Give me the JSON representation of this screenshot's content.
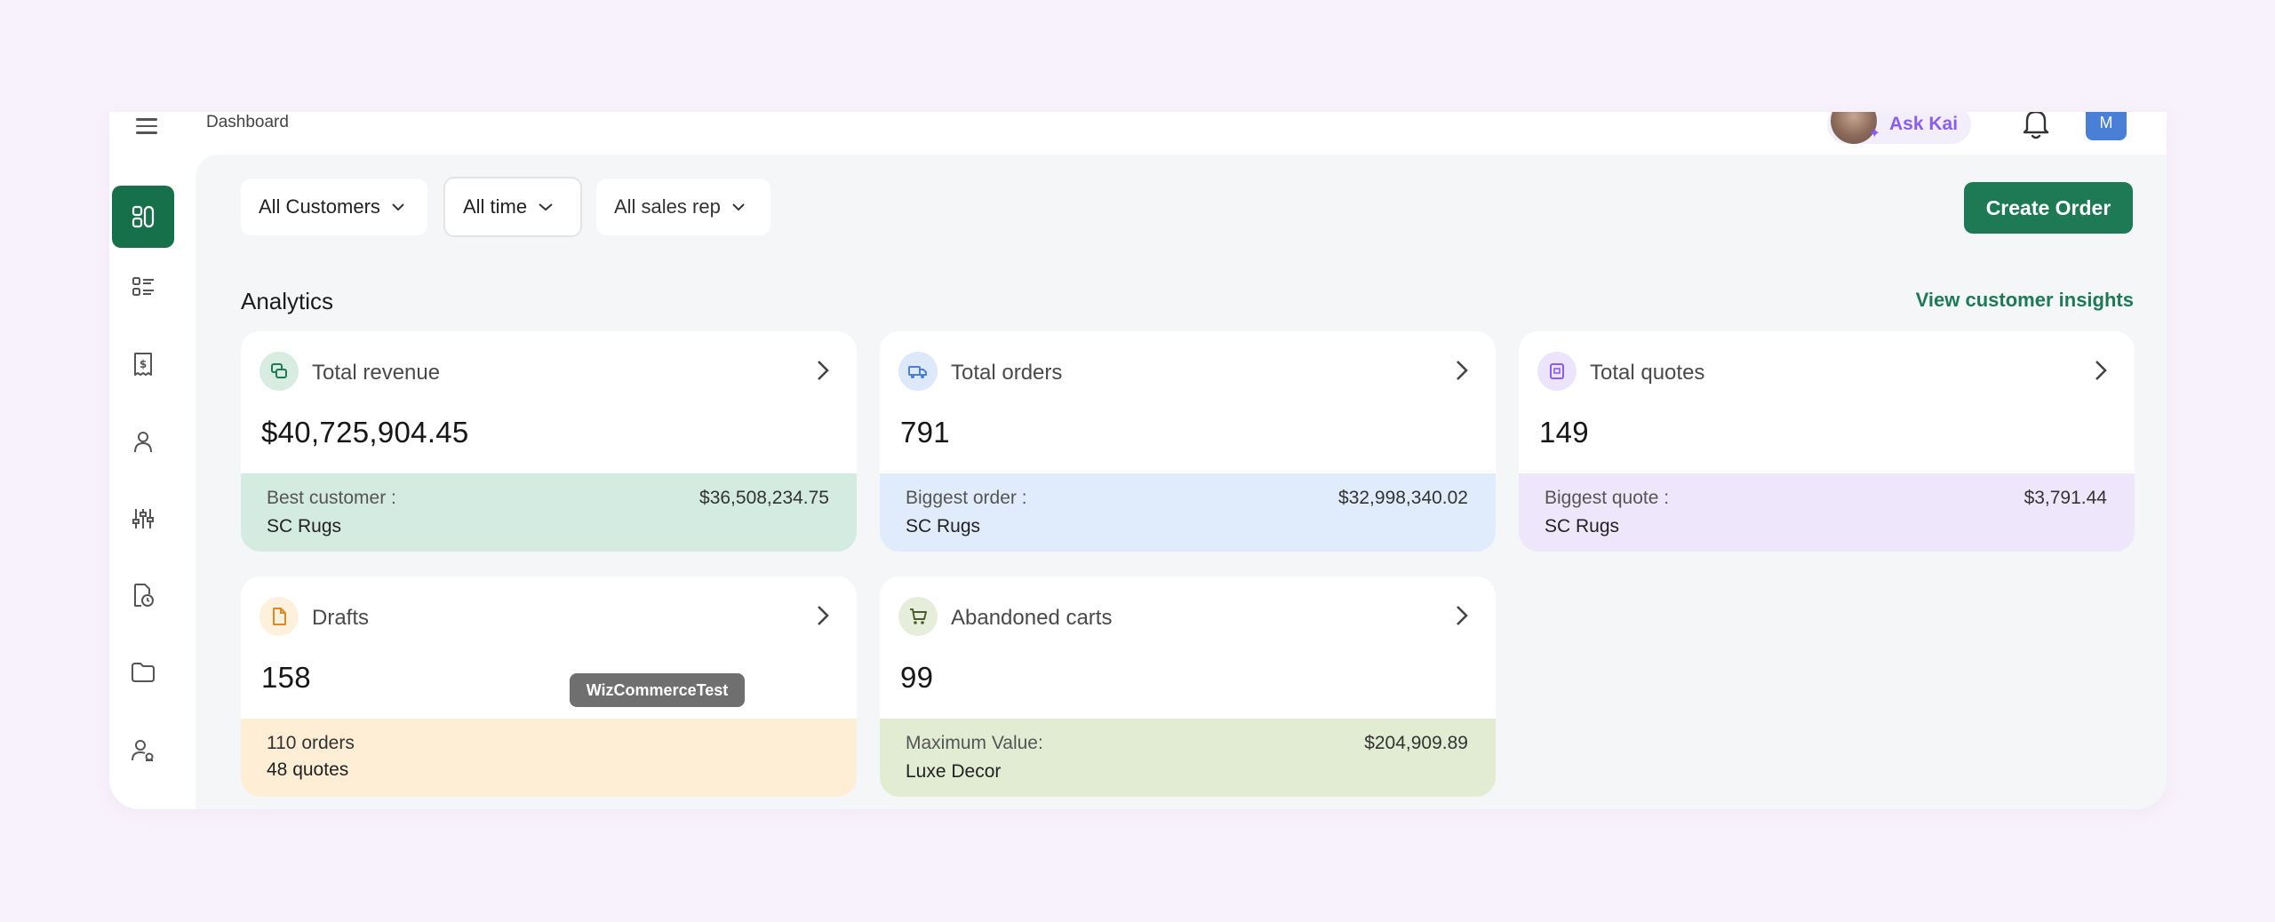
{
  "header": {
    "breadcrumb": "Dashboard",
    "ask_kai_label": "Ask Kai",
    "avatar_initial": "M"
  },
  "sidebar": {
    "items": [
      {
        "name": "sidebar-item-dashboard",
        "icon": "grid-icon",
        "active": true
      },
      {
        "name": "sidebar-item-list",
        "icon": "list-icon"
      },
      {
        "name": "sidebar-item-invoices",
        "icon": "receipt-dollar-icon"
      },
      {
        "name": "sidebar-item-customers",
        "icon": "user-icon"
      },
      {
        "name": "sidebar-item-settings",
        "icon": "sliders-icon"
      },
      {
        "name": "sidebar-item-reports",
        "icon": "document-clock-icon"
      },
      {
        "name": "sidebar-item-files",
        "icon": "folder-icon"
      },
      {
        "name": "sidebar-item-users",
        "icon": "user-settings-icon"
      }
    ]
  },
  "filters": {
    "customers": "All Customers",
    "time": "All time",
    "sales_rep": "All sales rep"
  },
  "actions": {
    "create_order": "Create Order"
  },
  "analytics": {
    "title": "Analytics",
    "view_insights": "View customer insights",
    "cards": {
      "revenue": {
        "title": "Total revenue",
        "value": "$40,725,904.45",
        "foot_label": "Best customer :",
        "foot_name": "SC Rugs",
        "foot_amount": "$36,508,234.75"
      },
      "orders": {
        "title": "Total orders",
        "value": "791",
        "foot_label": "Biggest order :",
        "foot_name": "SC Rugs",
        "foot_amount": "$32,998,340.02"
      },
      "quotes": {
        "title": "Total quotes",
        "value": "149",
        "foot_label": "Biggest quote :",
        "foot_name": "SC Rugs",
        "foot_amount": "$3,791.44"
      },
      "drafts": {
        "title": "Drafts",
        "value": "158",
        "foot_label": "110 orders",
        "foot_name": "48 quotes"
      },
      "abandoned": {
        "title": "Abandoned carts",
        "value": "99",
        "foot_label": "Maximum Value:",
        "foot_name": "Luxe Decor",
        "foot_amount": "$204,909.89"
      }
    }
  },
  "tooltip": "WizCommerceTest",
  "colors": {
    "accent": "#1e7a54",
    "revenue_foot": "#d3ebe0",
    "orders_foot": "#e0ecfb",
    "quotes_foot": "#eee6fb",
    "drafts_foot": "#fdeed5",
    "abandoned_foot": "#e2ecd3"
  }
}
